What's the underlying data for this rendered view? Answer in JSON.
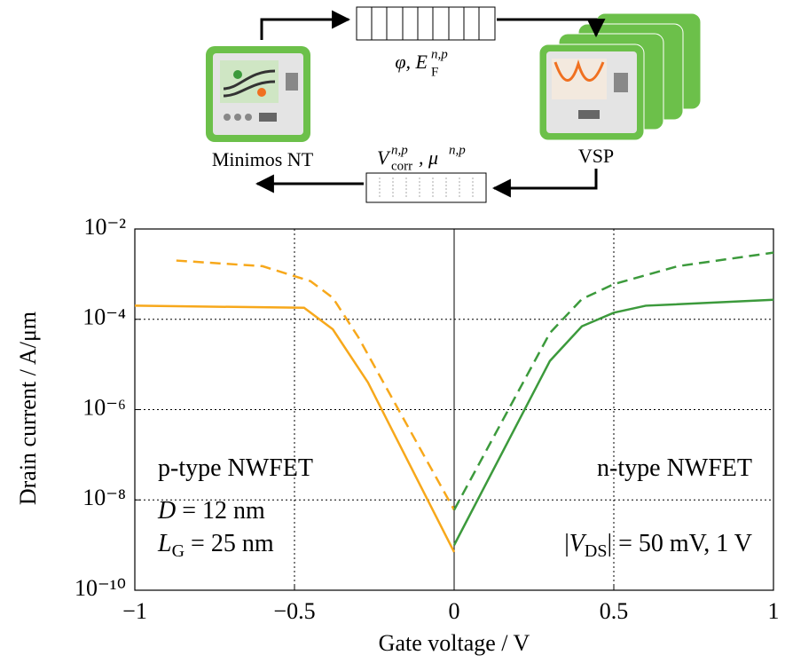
{
  "diagram": {
    "left_label": "Minimos NT",
    "right_label": "VSP",
    "top_label": {
      "text": "φ, E",
      "sub": "F",
      "sup": "n,p"
    },
    "bottom_label": {
      "text": "V",
      "sup": "n,p",
      "sub": "corr",
      "text2": ", μ",
      "sup2": "n,p"
    }
  },
  "chart_data": {
    "type": "line",
    "x_label": "Gate voltage / V",
    "y_label": "Drain current / A/μm",
    "xlim": [
      -1,
      1
    ],
    "ylim": [
      1e-10,
      0.01
    ],
    "log_y": true,
    "grid": true,
    "xticks": [
      {
        "value": -1,
        "label": "−1"
      },
      {
        "value": -0.5,
        "label": "−0.5"
      },
      0,
      0.5,
      1
    ],
    "yticks": [
      {
        "value": 1e-10,
        "label": "10⁻¹⁰"
      },
      {
        "value": 1e-08,
        "label": "10⁻⁸"
      },
      {
        "value": 1e-06,
        "label": "10⁻⁶"
      },
      {
        "value": 0.0001,
        "label": "10⁻⁴"
      },
      {
        "value": 0.01,
        "label": "10⁻²"
      }
    ],
    "series": [
      {
        "color": "#f7a81b",
        "style": "solid",
        "x": [
          -1,
          -0.47,
          -0.38,
          -0.27,
          0
        ],
        "values": [
          0.0002,
          0.00018,
          6e-05,
          4e-06,
          7e-10
        ]
      },
      {
        "color": "#f7a81b",
        "style": "dashed",
        "x": [
          -0.87,
          -0.6,
          -0.45,
          -0.38,
          -0.3,
          0
        ],
        "values": [
          0.002,
          0.0015,
          0.0007,
          0.0003,
          4e-05,
          6e-09
        ]
      },
      {
        "color": "#3c9a3c",
        "style": "solid",
        "x": [
          0,
          0.3,
          0.4,
          0.5,
          0.6,
          1
        ],
        "values": [
          1e-09,
          1.2e-05,
          7e-05,
          0.00014,
          0.0002,
          0.00027
        ]
      },
      {
        "color": "#3c9a3c",
        "style": "dashed",
        "x": [
          0,
          0.3,
          0.4,
          0.5,
          0.7,
          1
        ],
        "values": [
          6e-09,
          5e-05,
          0.00028,
          0.0006,
          0.0015,
          0.003
        ]
      }
    ],
    "annotations": [
      [
        {
          "text": "p-type NWFET"
        }
      ],
      [
        {
          "text": "D",
          "italic": true
        },
        {
          "text": " = 12 nm"
        }
      ],
      [
        {
          "text": "L",
          "italic": true
        },
        {
          "text": "G",
          "sub": true
        },
        {
          "text": " = 25 nm"
        }
      ],
      [
        {
          "text": "n-type NWFET"
        }
      ],
      [
        {
          "text": "|"
        },
        {
          "text": "V",
          "italic": true
        },
        {
          "text": "DS",
          "sub": true
        },
        {
          "text": "| = 50 mV, 1 V"
        }
      ]
    ]
  }
}
